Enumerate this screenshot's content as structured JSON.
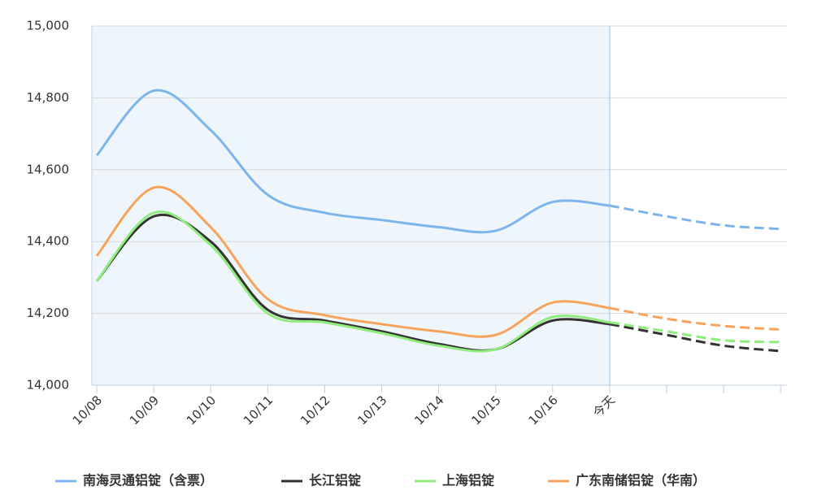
{
  "chart_data": {
    "type": "line",
    "categories": [
      "10/08",
      "10/09",
      "10/10",
      "10/11",
      "10/12",
      "10/13",
      "10/14",
      "10/15",
      "10/16",
      "今天",
      null,
      null,
      null
    ],
    "actual_until_index": 9,
    "series": [
      {
        "name": "南海灵通铝锭（含票）",
        "color": "#7cb5ec",
        "values": [
          14640,
          14820,
          14710,
          14530,
          14480,
          14460,
          14440,
          14430,
          14510,
          14500,
          14470,
          14445,
          14435
        ]
      },
      {
        "name": "长江铝锭",
        "color": "#333333",
        "values": [
          14290,
          14470,
          14400,
          14210,
          14180,
          14150,
          14115,
          14100,
          14180,
          14170,
          14140,
          14110,
          14095
        ]
      },
      {
        "name": "上海铝锭",
        "color": "#90ed7d",
        "values": [
          14290,
          14480,
          14390,
          14200,
          14175,
          14145,
          14110,
          14100,
          14190,
          14175,
          14150,
          14125,
          14120
        ]
      },
      {
        "name": "广东南储铝锭（华南）",
        "color": "#f7a35c",
        "values": [
          14360,
          14550,
          14440,
          14240,
          14195,
          14170,
          14150,
          14140,
          14230,
          14215,
          14185,
          14165,
          14155
        ]
      }
    ],
    "ylim": [
      14000,
      15000
    ],
    "yticks": [
      {
        "value": 14000,
        "label": "14,000"
      },
      {
        "value": 14200,
        "label": "14,200"
      },
      {
        "value": 14400,
        "label": "14,400"
      },
      {
        "value": 14600,
        "label": "14,600"
      },
      {
        "value": 14800,
        "label": "14,800"
      },
      {
        "value": 15000,
        "label": "15,000"
      }
    ],
    "grid": true
  }
}
